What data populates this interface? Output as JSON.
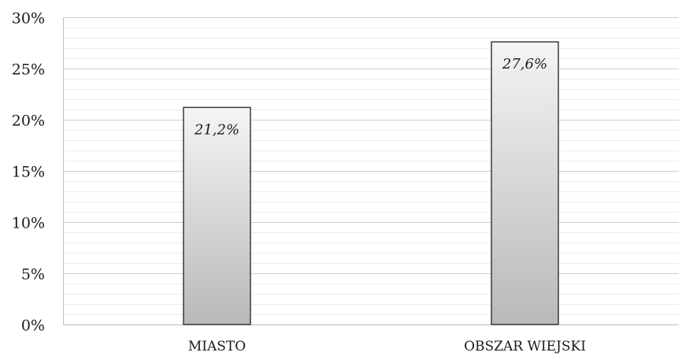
{
  "chart_data": {
    "type": "bar",
    "title": "",
    "xlabel": "",
    "ylabel": "",
    "categories": [
      "MIASTO",
      "OBSZAR WIEJSKI"
    ],
    "values": [
      21.2,
      27.6
    ],
    "data_labels": [
      "21,2%",
      "27,6%"
    ],
    "ylim": [
      0,
      30
    ],
    "y_ticks": [
      0,
      5,
      10,
      15,
      20,
      25,
      30
    ],
    "y_tick_labels": [
      "0%",
      "5%",
      "10%",
      "15%",
      "20%",
      "25%",
      "30%"
    ],
    "grid": "horizontal major and minor gridlines",
    "legend": "none",
    "colors": {
      "bar_fill_top": "#f4f4f4",
      "bar_fill_bottom": "#b9b9b9",
      "bar_stroke": "#3a3a3a",
      "grid_major": "#cfcfcf",
      "grid_minor": "#ebebeb",
      "axis": "#bfbfbf"
    }
  }
}
